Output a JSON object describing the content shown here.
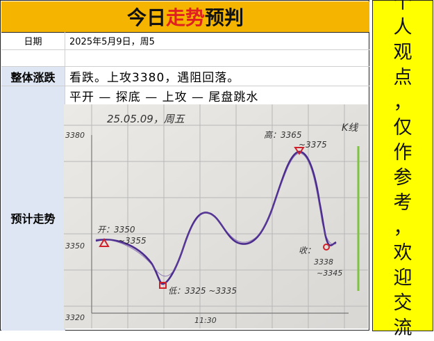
{
  "title": {
    "part1": "今日",
    "highlight": "走势",
    "part2": "预判"
  },
  "date_row": {
    "label": "日期",
    "value": "2025年5月9日，周5"
  },
  "overall_row": {
    "label": "整体涨跌",
    "line1": "看跌。上攻3380，遇阻回落。",
    "line2": "平开 — 探底 — 上攻 — 尾盘跳水"
  },
  "forecast_label": "预计走势",
  "sidebar_chars": [
    "个",
    "人",
    "观",
    "点",
    "，",
    "仅",
    "作",
    "参",
    "考",
    "，",
    "欢",
    "迎",
    "交",
    "流"
  ],
  "sketch": {
    "header": "25.05.09，周五",
    "top_right": "K线",
    "y_top": "3380",
    "y_mid": "3350",
    "y_bottom": "3320",
    "x_tick": "11:30",
    "open_note_1": "开：3350",
    "open_note_2": "~3355",
    "low_note": "低：3325 ~3335",
    "high_note_1": "高：3365",
    "high_note_2": "~3375",
    "close_note_1": "收：",
    "close_note_2": "3338",
    "close_note_3": "~3345"
  },
  "colors": {
    "title_bg": "#f4b400",
    "title_accent": "#e02020",
    "sidebar_bg": "#ffff00",
    "label_bg": "#dde6f2",
    "curve": "#4b2c8c",
    "marker": "#d0202a",
    "grid": "#b7b7b7"
  }
}
